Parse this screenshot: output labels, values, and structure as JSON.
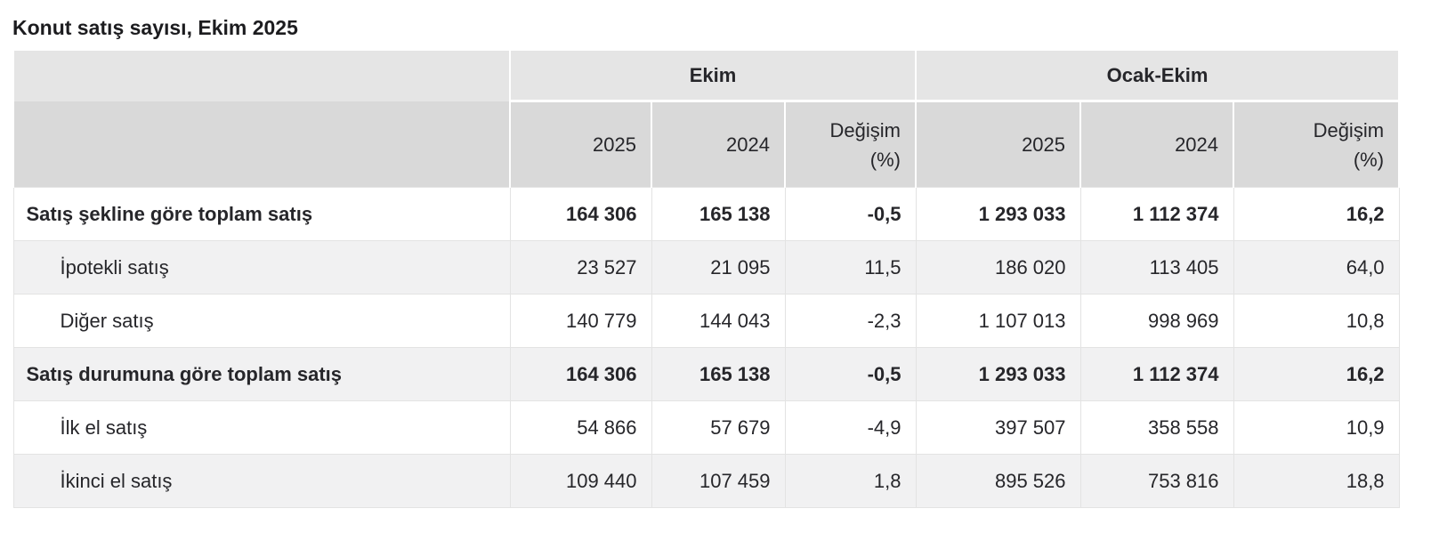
{
  "page": {
    "title": "Konut satış sayısı, Ekim 2025"
  },
  "colors": {
    "header_group_bg": "#e5e5e5",
    "header_sub_bg": "#d9d9d9",
    "row_alt_bg": "#f1f1f2",
    "row_bg": "#ffffff",
    "border": "#e3e3e3",
    "text": "#26262a"
  },
  "chart_data": {
    "type": "table",
    "title": "Konut satış sayısı, Ekim 2025",
    "column_groups": [
      {
        "label": "Ekim",
        "span": 3
      },
      {
        "label": "Ocak-Ekim",
        "span": 3
      }
    ],
    "sub_columns": [
      {
        "line1": "2025",
        "line2": ""
      },
      {
        "line1": "2024",
        "line2": ""
      },
      {
        "line1": "Değişim",
        "line2": "(%)"
      },
      {
        "line1": "2025",
        "line2": ""
      },
      {
        "line1": "2024",
        "line2": ""
      },
      {
        "line1": "Değişim",
        "line2": "(%)"
      }
    ],
    "columns": [
      "Ekim 2025",
      "Ekim 2024",
      "Ekim Değişim (%)",
      "Ocak-Ekim 2025",
      "Ocak-Ekim 2024",
      "Ocak-Ekim Değişim (%)"
    ],
    "rows": [
      {
        "label": "Satış şekline göre toplam satış",
        "style": "total",
        "values": [
          "164 306",
          "165 138",
          "-0,5",
          "1 293 033",
          "1 112 374",
          "16,2"
        ]
      },
      {
        "label": "İpotekli satış",
        "style": "sub",
        "values": [
          "23 527",
          "21 095",
          "11,5",
          "186 020",
          "113 405",
          "64,0"
        ]
      },
      {
        "label": "Diğer satış",
        "style": "sub",
        "values": [
          "140 779",
          "144 043",
          "-2,3",
          "1 107 013",
          "998 969",
          "10,8"
        ]
      },
      {
        "label": "Satış durumuna göre toplam satış",
        "style": "total",
        "values": [
          "164 306",
          "165 138",
          "-0,5",
          "1 293 033",
          "1 112 374",
          "16,2"
        ]
      },
      {
        "label": "İlk el satış",
        "style": "sub",
        "values": [
          "54 866",
          "57 679",
          "-4,9",
          "397 507",
          "358 558",
          "10,9"
        ]
      },
      {
        "label": "İkinci el satış",
        "style": "sub",
        "values": [
          "109 440",
          "107 459",
          "1,8",
          "895 526",
          "753 816",
          "18,8"
        ]
      }
    ]
  }
}
